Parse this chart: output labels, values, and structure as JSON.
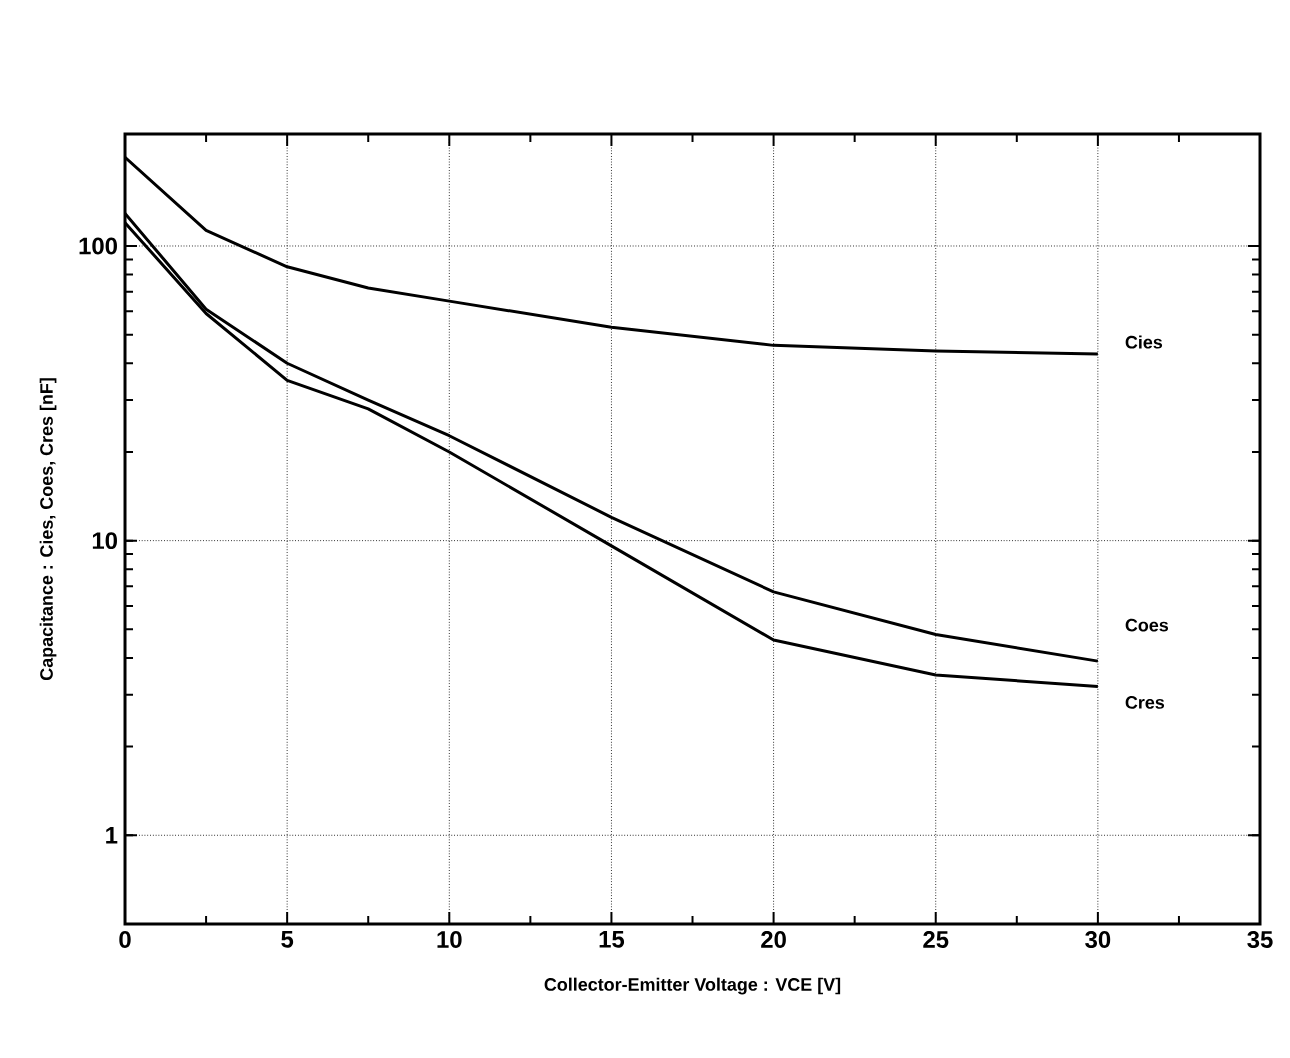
{
  "chart_data": {
    "type": "line",
    "xlabel": "Collector-Emitter Voltage : VCE [V]",
    "ylabel": "Capacitance : Cies, Coes, Cres [nF]",
    "x": [
      0,
      2.5,
      5,
      7.5,
      10,
      15,
      20,
      25,
      30
    ],
    "series": [
      {
        "name": "Cies",
        "color": "#000000",
        "values": [
          200,
          113,
          85,
          72,
          65,
          53,
          46,
          44,
          43
        ]
      },
      {
        "name": "Coes",
        "color": "#000000",
        "values": [
          129,
          61,
          40,
          30,
          22.7,
          12,
          6.7,
          4.8,
          3.9
        ]
      },
      {
        "name": "Cres",
        "color": "#000000",
        "values": [
          120,
          59,
          35,
          28,
          20,
          9.6,
          4.6,
          3.5,
          3.2
        ]
      }
    ],
    "log": "y",
    "grid": true,
    "marker": "none",
    "line_style": "solid",
    "legend": false,
    "xlim": [
      0,
      35
    ],
    "xticks": [
      0,
      5,
      10,
      15,
      20,
      25,
      30,
      35
    ],
    "ylim": [
      0.5,
      240
    ],
    "yticks": [
      1,
      10,
      100
    ]
  }
}
